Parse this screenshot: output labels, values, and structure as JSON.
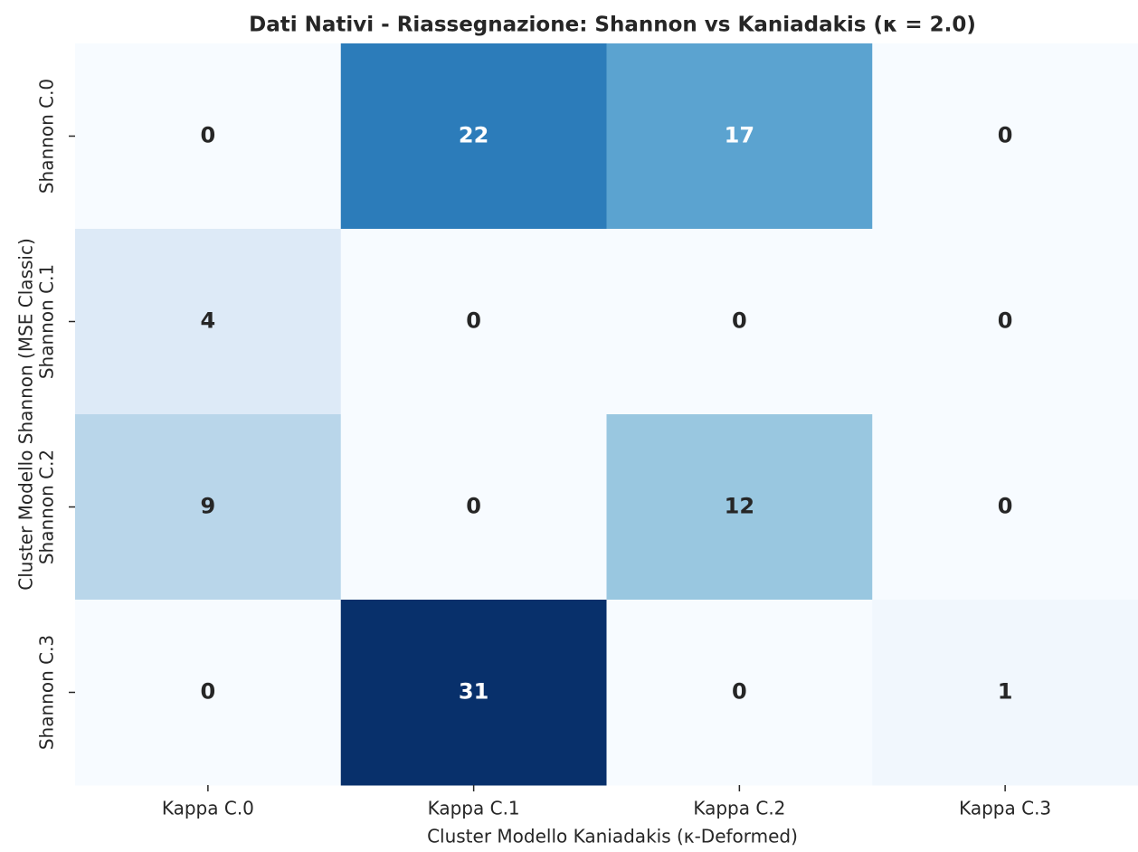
{
  "chart_data": {
    "type": "heatmap",
    "title": "Dati Nativi - Riassegnazione: Shannon vs Kaniadakis (κ = 2.0)",
    "xlabel": "Cluster Modello Kaniadakis (κ-Deformed)",
    "ylabel": "Cluster Modello Shannon (MSE Classic)",
    "x_categories": [
      "Kappa C.0",
      "Kappa C.1",
      "Kappa C.2",
      "Kappa C.3"
    ],
    "y_categories": [
      "Shannon C.0",
      "Shannon C.1",
      "Shannon C.2",
      "Shannon C.3"
    ],
    "values": [
      [
        0,
        22,
        17,
        0
      ],
      [
        4,
        0,
        0,
        0
      ],
      [
        9,
        0,
        12,
        0
      ],
      [
        0,
        31,
        0,
        1
      ]
    ],
    "colormap": "Blues"
  }
}
